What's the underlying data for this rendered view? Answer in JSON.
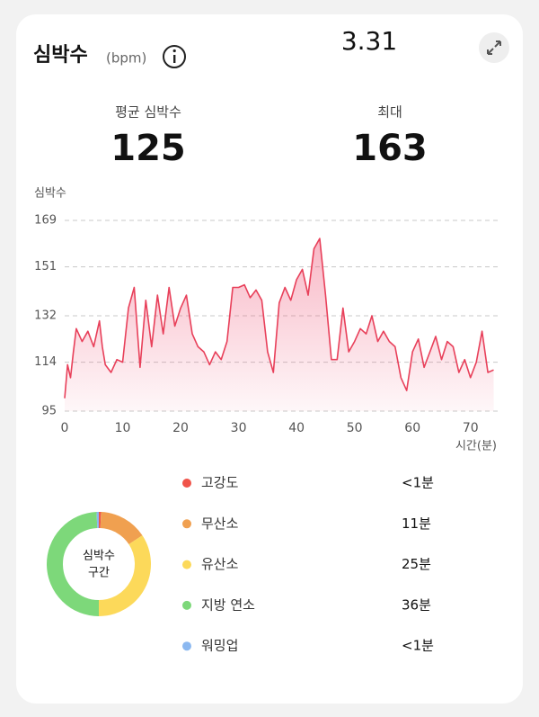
{
  "header": {
    "title": "심박수",
    "unit": "(bpm)",
    "date": "3.31"
  },
  "stats": [
    {
      "label": "평균 심박수",
      "value": 125
    },
    {
      "label": "최대",
      "value": 163
    }
  ],
  "chart_data": [
    {
      "type": "line",
      "ylabel": "심박수",
      "xlabel": "시간(분)",
      "color": "#e8405a",
      "grid": true,
      "x": [
        0,
        0.5,
        1,
        1.5,
        2,
        3,
        4,
        5,
        6,
        6.5,
        7,
        8,
        9,
        10,
        11,
        12,
        13,
        14,
        15,
        16,
        17,
        18,
        19,
        20,
        21,
        22,
        23,
        24,
        25,
        26,
        27,
        28,
        29,
        30,
        31,
        32,
        33,
        34,
        35,
        36,
        37,
        38,
        39,
        40,
        41,
        42,
        43,
        44,
        45,
        46,
        47,
        48,
        49,
        50,
        51,
        52,
        53,
        54,
        55,
        56,
        57,
        58,
        59,
        60,
        61,
        62,
        63,
        64,
        65,
        66,
        67,
        68,
        69,
        70,
        71,
        72,
        73,
        74
      ],
      "values": [
        100,
        113,
        108,
        118,
        127,
        122,
        126,
        120,
        130,
        120,
        113,
        110,
        115,
        114,
        135,
        143,
        112,
        138,
        120,
        140,
        125,
        143,
        128,
        135,
        140,
        125,
        120,
        118,
        113,
        118,
        115,
        122,
        143,
        143,
        144,
        139,
        142,
        138,
        118,
        110,
        137,
        143,
        138,
        146,
        150,
        140,
        158,
        162,
        140,
        115,
        115,
        135,
        118,
        122,
        127,
        125,
        132,
        122,
        126,
        122,
        120,
        108,
        103,
        118,
        123,
        112,
        118,
        124,
        115,
        122,
        120,
        110,
        115,
        108,
        114,
        126,
        110,
        111
      ],
      "xlim": [
        0,
        75
      ],
      "ylim": [
        95,
        169
      ],
      "xticks": [
        0,
        10,
        20,
        30,
        40,
        50,
        60,
        70
      ],
      "yticks": [
        95,
        114,
        132,
        151,
        169
      ]
    },
    {
      "type": "pie",
      "center_label": [
        "심박수",
        "구간"
      ],
      "categories": [
        "고강도",
        "무산소",
        "유산소",
        "지방 연소",
        "워밍업"
      ],
      "values": [
        0.5,
        11,
        25,
        36,
        0.5
      ],
      "value_labels": [
        "<1분",
        "11분",
        "25분",
        "36분",
        "<1분"
      ],
      "colors": [
        "#f0544a",
        "#f0a050",
        "#fcd95a",
        "#7dd87a",
        "#8bb8f0"
      ]
    }
  ]
}
